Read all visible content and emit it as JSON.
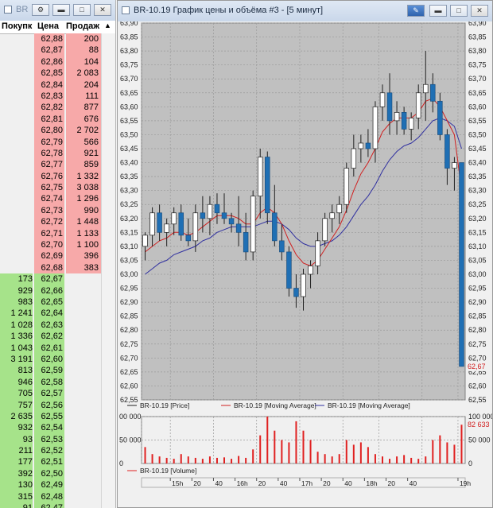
{
  "dom_window": {
    "title": "BR",
    "headers": {
      "bid": "Покупк",
      "price": "Цена",
      "ask": "Продаж"
    },
    "asks": [
      {
        "price": "62,88",
        "ask": "200"
      },
      {
        "price": "62,87",
        "ask": "88"
      },
      {
        "price": "62,86",
        "ask": "104"
      },
      {
        "price": "62,85",
        "ask": "2 083"
      },
      {
        "price": "62,84",
        "ask": "204"
      },
      {
        "price": "62,83",
        "ask": "111"
      },
      {
        "price": "62,82",
        "ask": "877"
      },
      {
        "price": "62,81",
        "ask": "676"
      },
      {
        "price": "62,80",
        "ask": "2 702"
      },
      {
        "price": "62,79",
        "ask": "566"
      },
      {
        "price": "62,78",
        "ask": "921"
      },
      {
        "price": "62,77",
        "ask": "859"
      },
      {
        "price": "62,76",
        "ask": "1 332"
      },
      {
        "price": "62,75",
        "ask": "3 038"
      },
      {
        "price": "62,74",
        "ask": "1 296"
      },
      {
        "price": "62,73",
        "ask": "990"
      },
      {
        "price": "62,72",
        "ask": "1 448"
      },
      {
        "price": "62,71",
        "ask": "1 133"
      },
      {
        "price": "62,70",
        "ask": "1 100"
      },
      {
        "price": "62,69",
        "ask": "396"
      },
      {
        "price": "62,68",
        "ask": "383"
      }
    ],
    "bids": [
      {
        "bid": "173",
        "price": "62,67"
      },
      {
        "bid": "929",
        "price": "62,66"
      },
      {
        "bid": "983",
        "price": "62,65"
      },
      {
        "bid": "1 241",
        "price": "62,64"
      },
      {
        "bid": "1 028",
        "price": "62,63"
      },
      {
        "bid": "1 336",
        "price": "62,62"
      },
      {
        "bid": "1 043",
        "price": "62,61"
      },
      {
        "bid": "3 191",
        "price": "62,60"
      },
      {
        "bid": "813",
        "price": "62,59"
      },
      {
        "bid": "946",
        "price": "62,58"
      },
      {
        "bid": "705",
        "price": "62,57"
      },
      {
        "bid": "757",
        "price": "62,56"
      },
      {
        "bid": "2 635",
        "price": "62,55"
      },
      {
        "bid": "932",
        "price": "62,54"
      },
      {
        "bid": "93",
        "price": "62,53"
      },
      {
        "bid": "211",
        "price": "62,52"
      },
      {
        "bid": "177",
        "price": "62,51"
      },
      {
        "bid": "392",
        "price": "62,50"
      },
      {
        "bid": "130",
        "price": "62,49"
      },
      {
        "bid": "315",
        "price": "62,48"
      },
      {
        "bid": "91",
        "price": "62,47"
      }
    ]
  },
  "chart_window": {
    "title": "BR-10.19 График цены и объёма #3 - [5 минут]",
    "accent_color": "#2f63ad"
  },
  "chart_data": [
    {
      "type": "candlestick",
      "ylim": [
        62.55,
        63.9
      ],
      "y_tick_step": 0.05,
      "y_tick_labels": [
        "63,90",
        "63,85",
        "63,80",
        "63,75",
        "63,70",
        "63,65",
        "63,60",
        "63,55",
        "63,50",
        "63,45",
        "63,40",
        "63,35",
        "63,30",
        "63,25",
        "63,20",
        "63,15",
        "63,10",
        "63,05",
        "63,00",
        "62,95",
        "62,90",
        "62,85",
        "62,80",
        "62,75",
        "62,70",
        "62,65",
        "62,60",
        "62,55"
      ],
      "last_price_label": "62,67",
      "grid": true,
      "legend": [
        {
          "name": "BR-10.19 [Price]",
          "color": "#202020"
        },
        {
          "name": "BR-10.19 [Moving Average]",
          "color": "#d02020"
        },
        {
          "name": "BR-10.19 [Moving Average]",
          "color": "#3030a0"
        }
      ],
      "candles": [
        {
          "o": 63.1,
          "h": 63.15,
          "l": 63.05,
          "c": 63.14
        },
        {
          "o": 63.14,
          "h": 63.24,
          "l": 63.1,
          "c": 63.22
        },
        {
          "o": 63.22,
          "h": 63.25,
          "l": 63.12,
          "c": 63.15
        },
        {
          "o": 63.15,
          "h": 63.2,
          "l": 63.1,
          "c": 63.18
        },
        {
          "o": 63.18,
          "h": 63.24,
          "l": 63.14,
          "c": 63.22
        },
        {
          "o": 63.22,
          "h": 63.25,
          "l": 63.12,
          "c": 63.14
        },
        {
          "o": 63.14,
          "h": 63.2,
          "l": 63.1,
          "c": 63.12
        },
        {
          "o": 63.12,
          "h": 63.25,
          "l": 63.08,
          "c": 63.22
        },
        {
          "o": 63.22,
          "h": 63.28,
          "l": 63.15,
          "c": 63.2
        },
        {
          "o": 63.2,
          "h": 63.28,
          "l": 63.14,
          "c": 63.25
        },
        {
          "o": 63.25,
          "h": 63.29,
          "l": 63.18,
          "c": 63.22
        },
        {
          "o": 63.22,
          "h": 63.29,
          "l": 63.18,
          "c": 63.2
        },
        {
          "o": 63.2,
          "h": 63.22,
          "l": 63.15,
          "c": 63.18
        },
        {
          "o": 63.18,
          "h": 63.28,
          "l": 63.1,
          "c": 63.15
        },
        {
          "o": 63.15,
          "h": 63.22,
          "l": 63.05,
          "c": 63.08
        },
        {
          "o": 63.08,
          "h": 63.3,
          "l": 63.05,
          "c": 63.28
        },
        {
          "o": 63.28,
          "h": 63.45,
          "l": 63.2,
          "c": 63.42
        },
        {
          "o": 63.42,
          "h": 63.44,
          "l": 63.18,
          "c": 63.22
        },
        {
          "o": 63.22,
          "h": 63.32,
          "l": 63.1,
          "c": 63.12
        },
        {
          "o": 63.12,
          "h": 63.18,
          "l": 63.05,
          "c": 63.08
        },
        {
          "o": 63.08,
          "h": 63.1,
          "l": 62.92,
          "c": 62.95
        },
        {
          "o": 62.95,
          "h": 63.0,
          "l": 62.88,
          "c": 62.92
        },
        {
          "o": 62.92,
          "h": 63.02,
          "l": 62.87,
          "c": 63.0
        },
        {
          "o": 63.0,
          "h": 63.05,
          "l": 62.95,
          "c": 63.03
        },
        {
          "o": 63.03,
          "h": 63.15,
          "l": 63.0,
          "c": 63.12
        },
        {
          "o": 63.12,
          "h": 63.22,
          "l": 63.1,
          "c": 63.2
        },
        {
          "o": 63.2,
          "h": 63.25,
          "l": 63.15,
          "c": 63.22
        },
        {
          "o": 63.22,
          "h": 63.28,
          "l": 63.18,
          "c": 63.25
        },
        {
          "o": 63.25,
          "h": 63.4,
          "l": 63.22,
          "c": 63.38
        },
        {
          "o": 63.38,
          "h": 63.5,
          "l": 63.35,
          "c": 63.45
        },
        {
          "o": 63.45,
          "h": 63.5,
          "l": 63.4,
          "c": 63.47
        },
        {
          "o": 63.47,
          "h": 63.52,
          "l": 63.42,
          "c": 63.45
        },
        {
          "o": 63.45,
          "h": 63.62,
          "l": 63.4,
          "c": 63.6
        },
        {
          "o": 63.6,
          "h": 63.68,
          "l": 63.55,
          "c": 63.65
        },
        {
          "o": 63.65,
          "h": 63.72,
          "l": 63.5,
          "c": 63.55
        },
        {
          "o": 63.55,
          "h": 63.62,
          "l": 63.5,
          "c": 63.58
        },
        {
          "o": 63.58,
          "h": 63.6,
          "l": 63.5,
          "c": 63.52
        },
        {
          "o": 63.52,
          "h": 63.58,
          "l": 63.48,
          "c": 63.56
        },
        {
          "o": 63.56,
          "h": 63.68,
          "l": 63.52,
          "c": 63.65
        },
        {
          "o": 63.65,
          "h": 63.8,
          "l": 63.55,
          "c": 63.68
        },
        {
          "o": 63.68,
          "h": 63.72,
          "l": 63.58,
          "c": 63.62
        },
        {
          "o": 63.62,
          "h": 63.65,
          "l": 63.48,
          "c": 63.5
        },
        {
          "o": 63.5,
          "h": 63.52,
          "l": 63.32,
          "c": 63.38
        },
        {
          "o": 63.38,
          "h": 63.42,
          "l": 63.3,
          "c": 63.4
        },
        {
          "o": 63.4,
          "h": 63.4,
          "l": 62.67,
          "c": 62.67
        }
      ],
      "ma_fast": [
        63.08,
        63.1,
        63.12,
        63.13,
        63.15,
        63.15,
        63.14,
        63.15,
        63.17,
        63.19,
        63.21,
        63.21,
        63.21,
        63.2,
        63.18,
        63.18,
        63.22,
        63.24,
        63.22,
        63.18,
        63.12,
        63.07,
        63.04,
        63.03,
        63.05,
        63.09,
        63.13,
        63.17,
        63.23,
        63.3,
        63.36,
        63.4,
        63.45,
        63.51,
        63.54,
        63.56,
        63.56,
        63.56,
        63.58,
        63.62,
        63.63,
        63.6,
        63.55,
        63.5,
        63.3
      ],
      "ma_slow": [
        63.0,
        63.02,
        63.04,
        63.05,
        63.07,
        63.08,
        63.09,
        63.1,
        63.12,
        63.13,
        63.15,
        63.16,
        63.17,
        63.17,
        63.17,
        63.17,
        63.18,
        63.19,
        63.19,
        63.18,
        63.16,
        63.13,
        63.11,
        63.1,
        63.1,
        63.11,
        63.12,
        63.14,
        63.17,
        63.21,
        63.25,
        63.28,
        63.32,
        63.37,
        63.41,
        63.44,
        63.46,
        63.47,
        63.49,
        63.52,
        63.55,
        63.56,
        63.55,
        63.53,
        63.45
      ]
    },
    {
      "type": "bar",
      "title": "BR-10.19 [Volume]",
      "ylim": [
        0,
        100000
      ],
      "y_tick_labels_right": [
        "100 000",
        "50 000",
        "0"
      ],
      "y_tick_labels_left": [
        "00 000",
        "50 000",
        "0"
      ],
      "last_value_label": "82 633",
      "x_tick_labels": [
        "15h",
        "20",
        "40",
        "16h",
        "20",
        "40",
        "17h",
        "20",
        "40",
        "18h",
        "20",
        "40",
        "19h"
      ],
      "values": [
        35000,
        20000,
        15000,
        12000,
        10000,
        20000,
        15000,
        12000,
        10000,
        15000,
        12000,
        13000,
        10000,
        16000,
        12000,
        30000,
        60000,
        100000,
        70000,
        50000,
        45000,
        90000,
        70000,
        50000,
        25000,
        20000,
        15000,
        20000,
        50000,
        40000,
        45000,
        35000,
        20000,
        15000,
        10000,
        15000,
        18000,
        12000,
        10000,
        15000,
        50000,
        60000,
        45000,
        40000,
        82633
      ]
    }
  ]
}
